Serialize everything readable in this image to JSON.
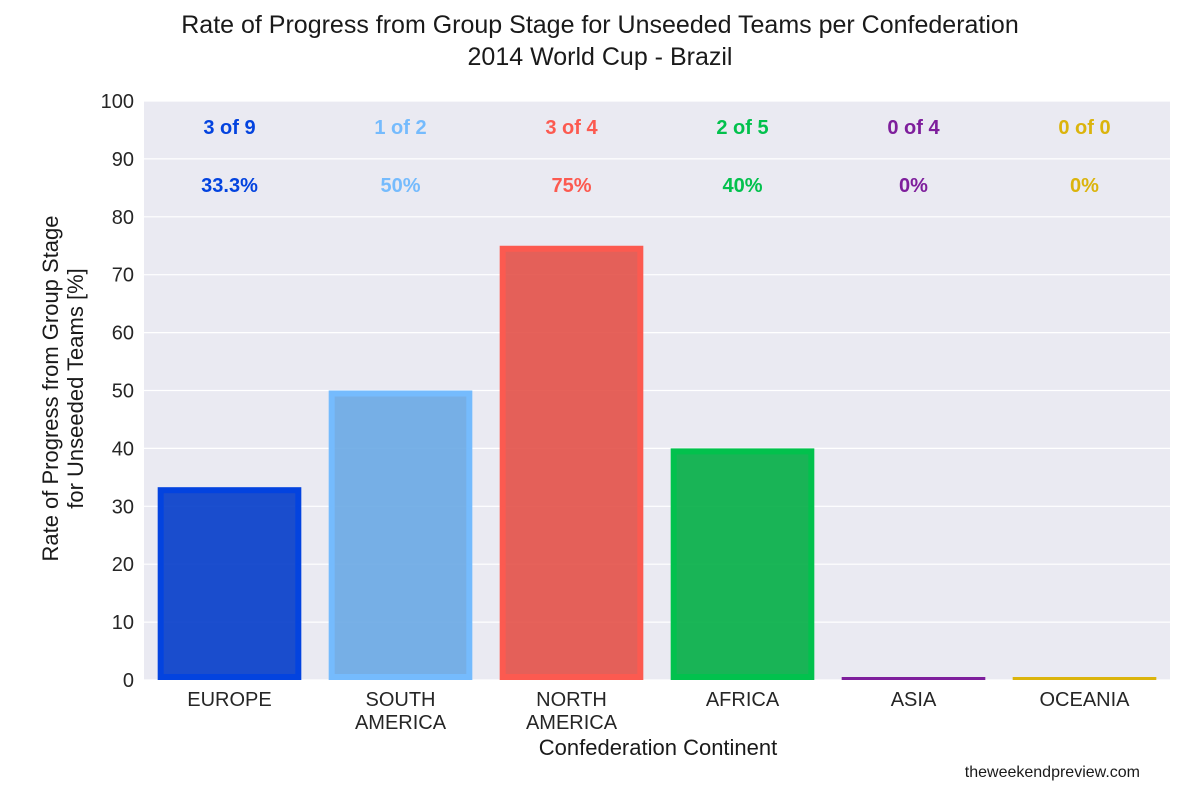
{
  "chart_data": {
    "type": "bar",
    "title": [
      "Rate of Progress from Group Stage for Unseeded Teams per Confederation",
      "2014 World Cup - Brazil"
    ],
    "xlabel": "Confederation Continent",
    "ylabel": [
      "Rate of Progress from Group Stage",
      "for Unseeded Teams [%]"
    ],
    "ylim": [
      0,
      100
    ],
    "yticks": [
      "0",
      "10",
      "20",
      "30",
      "40",
      "50",
      "60",
      "70",
      "80",
      "90",
      "100"
    ],
    "grid": true,
    "categories": [
      [
        "EUROPE"
      ],
      [
        "SOUTH",
        "AMERICA"
      ],
      [
        "NORTH",
        "AMERICA"
      ],
      [
        "AFRICA"
      ],
      [
        "ASIA"
      ],
      [
        "OCEANIA"
      ]
    ],
    "values": [
      33.3,
      50,
      75,
      40,
      0,
      0
    ],
    "counts": [
      "3 of 9",
      "1 of 2",
      "3 of 4",
      "2 of 5",
      "0 of 4",
      "0 of 0"
    ],
    "percent_labels": [
      "33.3%",
      "50%",
      "75%",
      "40%",
      "0%",
      "0%"
    ],
    "colors": [
      "#0343df",
      "#75bbfd",
      "#fc5a50",
      "#02c14d",
      "#7e1e9c",
      "#dbb40c"
    ]
  },
  "credit": "theweekendpreview.com"
}
